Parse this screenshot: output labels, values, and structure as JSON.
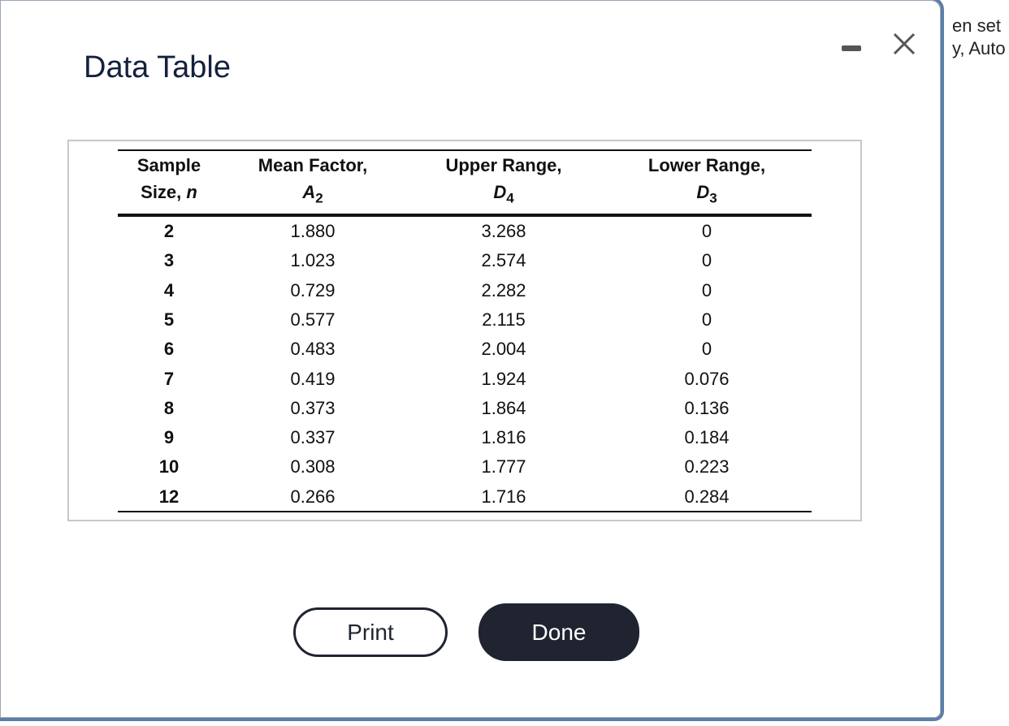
{
  "background_text": [
    "en set",
    "y, Auto"
  ],
  "dialog": {
    "title": "Data Table"
  },
  "table": {
    "header": [
      {
        "line1": "Sample",
        "line2": "Size,",
        "symbol": "n"
      },
      {
        "line1": "Mean Factor,",
        "symbol": "A",
        "subscript": "2"
      },
      {
        "line1": "Upper Range,",
        "symbol": "D",
        "subscript": "4"
      },
      {
        "line1": "Lower Range,",
        "symbol": "D",
        "subscript": "3"
      }
    ],
    "rows": [
      [
        "2",
        "1.880",
        "3.268",
        "0"
      ],
      [
        "3",
        "1.023",
        "2.574",
        "0"
      ],
      [
        "4",
        "0.729",
        "2.282",
        "0"
      ],
      [
        "5",
        "0.577",
        "2.115",
        "0"
      ],
      [
        "6",
        "0.483",
        "2.004",
        "0"
      ],
      [
        "7",
        "0.419",
        "1.924",
        "0.076"
      ],
      [
        "8",
        "0.373",
        "1.864",
        "0.136"
      ],
      [
        "9",
        "0.337",
        "1.816",
        "0.184"
      ],
      [
        "10",
        "0.308",
        "1.777",
        "0.223"
      ],
      [
        "12",
        "0.266",
        "1.716",
        "0.284"
      ]
    ]
  },
  "buttons": [
    "Print",
    "Done"
  ]
}
